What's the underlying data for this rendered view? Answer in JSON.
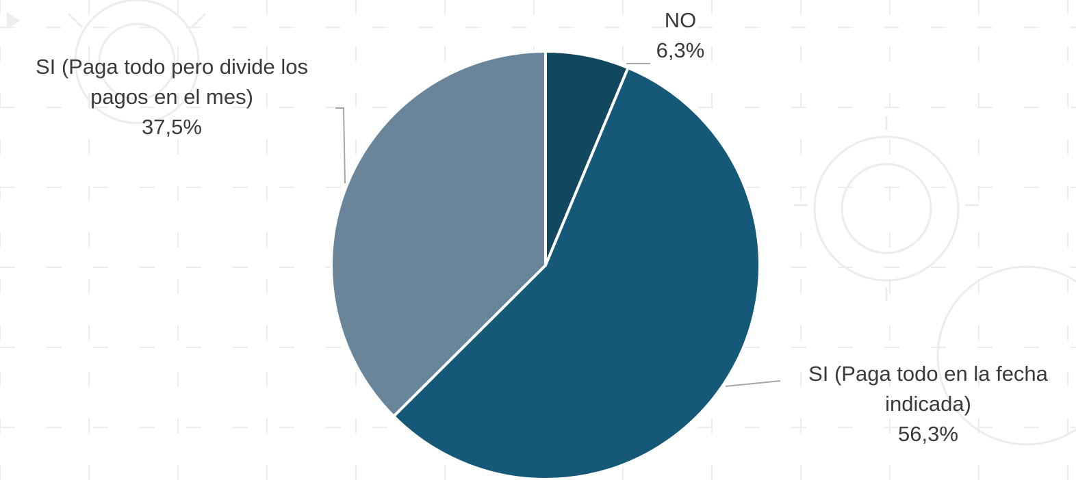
{
  "chart_data": {
    "type": "pie",
    "slices": [
      {
        "label_lines": [
          "NO"
        ],
        "value": 6.3,
        "value_label": "6,3%",
        "color": "#11485f"
      },
      {
        "label_lines": [
          "SI (Paga todo en la fecha",
          "indicada)"
        ],
        "value": 56.3,
        "value_label": "56,3%",
        "color": "#155878"
      },
      {
        "label_lines": [
          "SI (Paga todo pero divide los",
          "pagos en el mes)"
        ],
        "value": 37.5,
        "value_label": "37,5%",
        "color": "#6a8599"
      }
    ],
    "start_angle": "12 o'clock",
    "direction": "clockwise",
    "legend": "none",
    "slice_border_color": "#ffffff",
    "leader_line_color": "#a6a6a6"
  },
  "background": {
    "color": "#ffffff",
    "pattern": "faint dashed grid with gear watermark",
    "pattern_color": "#ececec"
  }
}
